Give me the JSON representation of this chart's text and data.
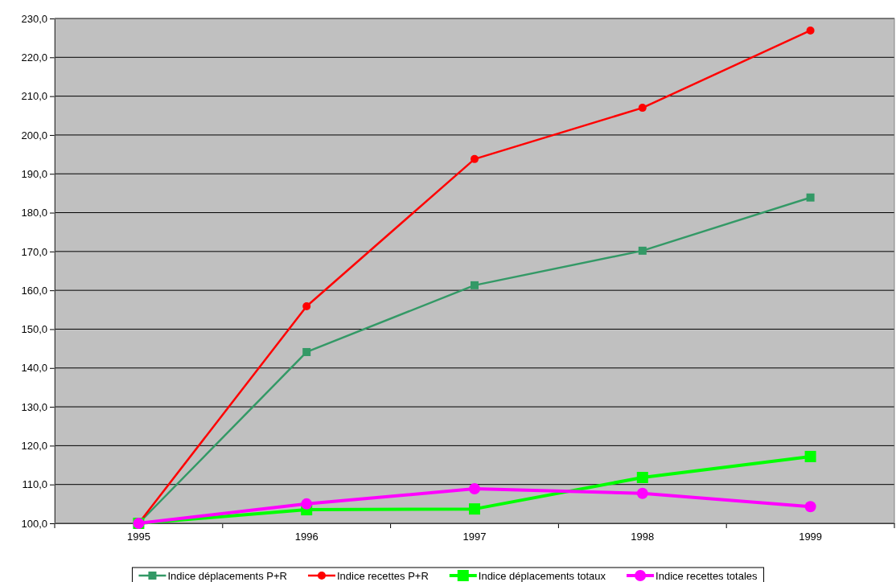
{
  "chart_data": {
    "type": "line",
    "categories": [
      "1995",
      "1996",
      "1997",
      "1998",
      "1999"
    ],
    "ylim": [
      100,
      230
    ],
    "yticks": [
      {
        "value": 100,
        "label": "100,0"
      },
      {
        "value": 110,
        "label": "110,0"
      },
      {
        "value": 120,
        "label": "120,0"
      },
      {
        "value": 130,
        "label": "130,0"
      },
      {
        "value": 140,
        "label": "140,0"
      },
      {
        "value": 150,
        "label": "150,0"
      },
      {
        "value": 160,
        "label": "160,0"
      },
      {
        "value": 170,
        "label": "170,0"
      },
      {
        "value": 180,
        "label": "180,0"
      },
      {
        "value": 190,
        "label": "190,0"
      },
      {
        "value": 200,
        "label": "200,0"
      },
      {
        "value": 210,
        "label": "210,0"
      },
      {
        "value": 220,
        "label": "220,0"
      },
      {
        "value": 230,
        "label": "230,0"
      }
    ],
    "grid": "y",
    "legend": "bottom",
    "line_style": "solid",
    "series": [
      {
        "name": "Indice déplacements P+R",
        "color": "#339966",
        "marker": "square",
        "values": [
          100,
          144.1,
          161.3,
          170.2,
          183.9
        ]
      },
      {
        "name": "Indice recettes P+R",
        "color": "#ff0000",
        "marker": "circle",
        "values": [
          100,
          155.9,
          193.8,
          207.0,
          226.9
        ]
      },
      {
        "name": "Indice déplacements totaux",
        "color": "#00ff00",
        "marker": "square",
        "values": [
          100,
          103.5,
          103.7,
          111.8,
          117.2
        ]
      },
      {
        "name": "Indice recettes totales",
        "color": "#ff00ff",
        "marker": "circle",
        "values": [
          100,
          105.0,
          108.9,
          107.7,
          104.3
        ]
      }
    ]
  }
}
